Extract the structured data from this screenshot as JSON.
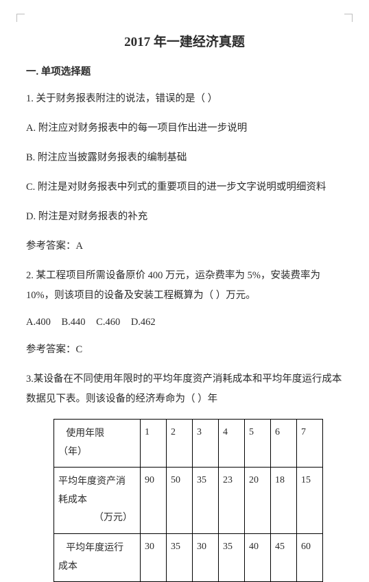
{
  "title": "2017 年一建经济真题",
  "section1": "一. 单项选择题",
  "q1": {
    "stem": "1. 关于财务报表附注的说法，错误的是（ ）",
    "A": "A. 附注应对财务报表中的每一项目作出进一步说明",
    "B": "B. 附注应当披露财务报表的编制基础",
    "C": "C. 附注是对财务报表中列式的重要项目的进一步文字说明或明细资料",
    "D": "D. 附注是对财务报表的补充",
    "ans": "参考答案：A"
  },
  "q2": {
    "stem": "2.  某工程项目所需设备原价 400 万元，运杂费率为 5%，安装费率为 10%，则该项目的设备及安装工程概算为（ ）万元。",
    "opts": {
      "A": "A.400",
      "B": "B.440",
      "C": "C.460",
      "D": "D.462"
    },
    "ans": "参考答案：C"
  },
  "q3": {
    "stem": "3.某设备在不同使用年限时的平均年度资产消耗成本和平均年度运行成本数据见下表。则该设备的经济寿命为（ ）年",
    "table": {
      "h1a": "使用年限",
      "h1b": "（年）",
      "h2a": "平均年度资产消",
      "h2b": "耗成本",
      "h2c": "（万元）",
      "h3a": "平均年度运行",
      "h3b": "成本",
      "cols": [
        "1",
        "2",
        "3",
        "4",
        "5",
        "6",
        "7"
      ],
      "r2": [
        "90",
        "50",
        "35",
        "23",
        "20",
        "18",
        "15"
      ],
      "r3": [
        "30",
        "35",
        "30",
        "35",
        "40",
        "45",
        "60"
      ]
    }
  },
  "style": {
    "text_color": "#2b2b2b",
    "bg": "#ffffff",
    "border": "#000000",
    "corner": "#bdbdbd",
    "title_fontsize": 19,
    "body_fontsize": 14.5
  }
}
